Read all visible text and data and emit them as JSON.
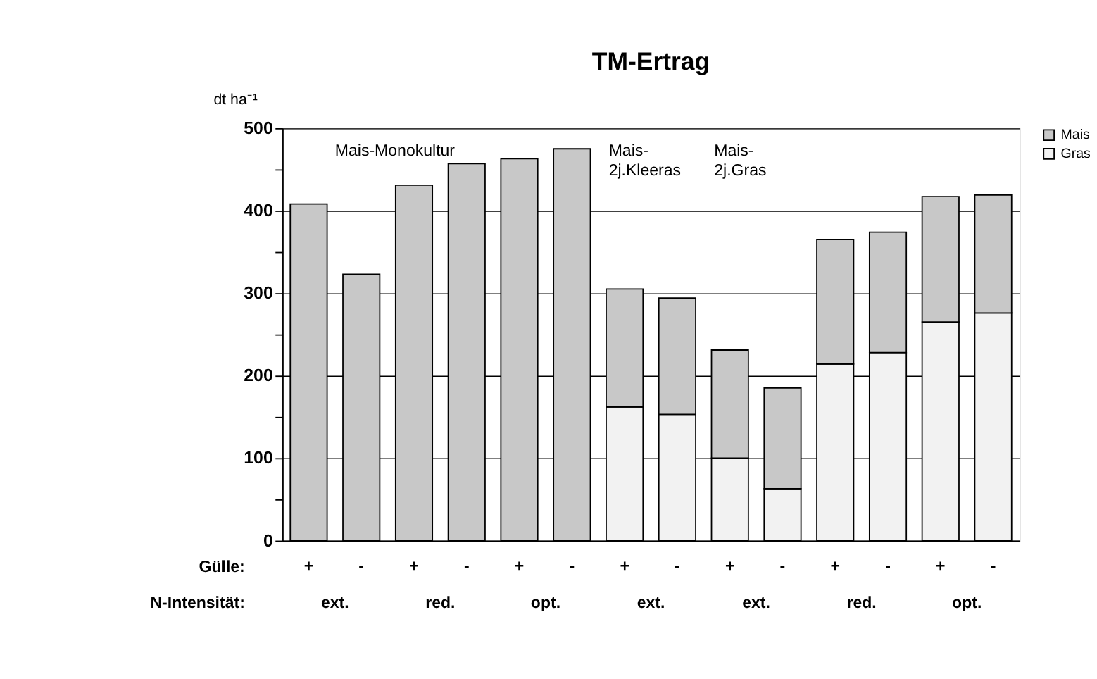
{
  "chart_data": {
    "type": "bar",
    "stacked": true,
    "title": "TM-Ertrag",
    "ylabel": "dt ha⁻¹",
    "categories": [
      "+",
      "-",
      "+",
      "-",
      "+",
      "-",
      "+",
      "-",
      "+",
      "-",
      "+",
      "-",
      "+",
      "-"
    ],
    "series": [
      {
        "name": "Gras",
        "color": "#f2f2f2",
        "values": [
          null,
          null,
          null,
          null,
          null,
          null,
          162,
          153,
          100,
          63,
          214,
          228,
          265,
          276
        ]
      },
      {
        "name": "Mais",
        "color": "#c8c8c8",
        "values": [
          408,
          323,
          431,
          457,
          463,
          475,
          143,
          141,
          131,
          122,
          151,
          146,
          152,
          143
        ]
      }
    ],
    "ylim": [
      0,
      500
    ],
    "yticks": [
      0,
      {
        "value": 50,
        "label": null
      },
      100,
      {
        "value": 150,
        "label": null
      },
      200,
      {
        "value": 250,
        "label": null
      },
      300,
      {
        "value": 350,
        "label": null
      },
      400,
      {
        "value": 450,
        "label": null
      },
      500
    ],
    "grid": "y",
    "legend": "right",
    "annotations": [
      "Mais-Monokultur",
      "Mais-\n2j.Kleeras",
      "Mais-\n2j.Gras",
      "Gülle:",
      "N-Intensität:",
      "ext.",
      "red.",
      "opt.",
      "ext.",
      "ext.",
      "red.",
      "opt."
    ]
  }
}
